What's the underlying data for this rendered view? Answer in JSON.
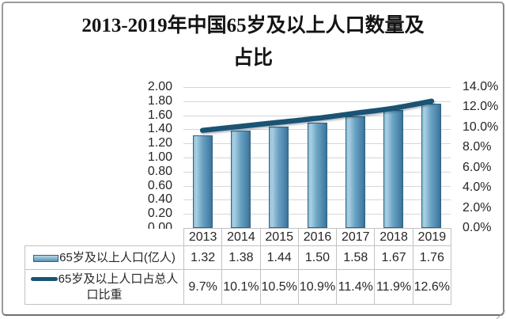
{
  "window": {
    "background": "#ffffff",
    "border_color": "#9b9b9b"
  },
  "title": {
    "text": "2013-2019年中国65岁及以上人口数量及占比",
    "display": "2013-2019年中国65岁及以上人口数量及\n占比"
  },
  "chart_data": {
    "type": "combo_bar_line",
    "title": "2013-2019年中国65岁及以上人口数量及占比",
    "categories": [
      "2013",
      "2014",
      "2015",
      "2016",
      "2017",
      "2018",
      "2019"
    ],
    "series": [
      {
        "name": "65岁及以上人口(亿人)",
        "chart": "bar",
        "axis": "left",
        "values": [
          1.32,
          1.38,
          1.44,
          1.5,
          1.58,
          1.67,
          1.76
        ]
      },
      {
        "name": "65岁及以上人口占总人口比重",
        "chart": "line",
        "axis": "right",
        "unit": "%",
        "values": [
          9.7,
          10.1,
          10.5,
          10.9,
          11.4,
          11.9,
          12.6
        ]
      }
    ],
    "left_axis": {
      "min": 0,
      "max": 2,
      "step": 0.2,
      "ticks": [
        "2.00",
        "1.80",
        "1.60",
        "1.40",
        "1.20",
        "1.00",
        "0.80",
        "0.60",
        "0.40",
        "0.20",
        "0.00"
      ]
    },
    "right_axis": {
      "min": 0,
      "max": 14,
      "step": 2,
      "ticks": [
        "14.0%",
        "12.0%",
        "10.0%",
        "8.0%",
        "6.0%",
        "4.0%",
        "2.0%",
        "0.0%"
      ]
    },
    "gridlines": "horizontal",
    "legend_position": "bottom-table"
  },
  "table": {
    "rows": [
      {
        "label": "65岁及以上人口(亿人)",
        "label_display": "65岁及以上人口(亿人)",
        "swatch": "bar",
        "values": [
          "1.32",
          "1.38",
          "1.44",
          "1.50",
          "1.58",
          "1.67",
          "1.76"
        ]
      },
      {
        "label": "65岁及以上人口占总人口比重",
        "label_display": "65岁及以上人口占总人\n口比重",
        "swatch": "line",
        "values": [
          "9.7%",
          "10.1%",
          "10.5%",
          "10.9%",
          "11.4%",
          "11.9%",
          "12.6%"
        ]
      }
    ]
  },
  "colors": {
    "bar_gradient_light": "#a9cfe2",
    "bar_gradient_mid": "#6aa3c3",
    "bar_gradient_dark": "#477fa6",
    "bar_border": "#2d6385",
    "line": "#1a5373",
    "gridline": "#d6d6d6",
    "table_border": "#c2c2c2",
    "text": "#262626",
    "title_text": "#141414"
  }
}
